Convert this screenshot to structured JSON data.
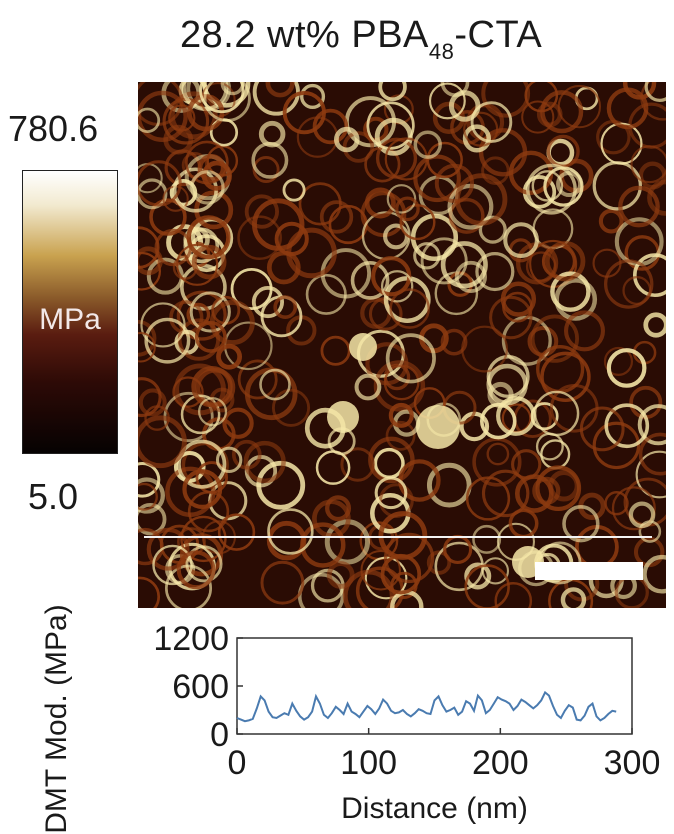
{
  "title": {
    "main": "28.2 wt% PBA",
    "sub": "48",
    "tail": "-CTA"
  },
  "colorbar": {
    "max": "780.6",
    "min": "5.0",
    "unit": "MPa",
    "colors": [
      "#ffffff",
      "#c9a24f",
      "#8a5a2a",
      "#5a1c10",
      "#060202"
    ]
  },
  "image_colors": {
    "dark": "#2a0c04",
    "mid": "#8c3a10",
    "bright": "#f6e7a8"
  },
  "chart_data": {
    "type": "line",
    "xlabel": "Distance (nm)",
    "ylabel": "DMT Mod. (MPa)",
    "xlim": [
      0,
      300
    ],
    "ylim": [
      0,
      1200
    ],
    "xticks": [
      0,
      100,
      200,
      300
    ],
    "yticks": [
      0,
      600,
      1200
    ],
    "line_color": "#4a7bb0",
    "x": [
      0,
      3,
      6,
      9,
      12,
      15,
      18,
      21,
      24,
      27,
      30,
      33,
      36,
      39,
      42,
      45,
      48,
      51,
      54,
      57,
      60,
      63,
      66,
      69,
      72,
      75,
      78,
      81,
      84,
      87,
      90,
      93,
      96,
      99,
      102,
      105,
      108,
      111,
      114,
      117,
      120,
      123,
      126,
      129,
      132,
      135,
      138,
      141,
      144,
      147,
      150,
      153,
      156,
      159,
      162,
      165,
      168,
      171,
      174,
      177,
      180,
      183,
      186,
      189,
      192,
      195,
      198,
      201,
      204,
      207,
      210,
      213,
      216,
      219,
      222,
      225,
      228,
      231,
      234,
      237,
      240,
      243,
      246,
      249,
      252,
      255,
      258,
      261,
      264,
      267,
      270,
      273,
      276,
      279,
      282,
      285,
      288
    ],
    "y": [
      200,
      180,
      160,
      170,
      190,
      320,
      470,
      420,
      280,
      210,
      200,
      230,
      260,
      240,
      380,
      290,
      220,
      180,
      210,
      280,
      470,
      380,
      240,
      200,
      260,
      340,
      300,
      250,
      380,
      280,
      250,
      210,
      280,
      350,
      310,
      250,
      320,
      430,
      380,
      290,
      260,
      270,
      300,
      250,
      220,
      260,
      310,
      290,
      260,
      250,
      420,
      470,
      360,
      280,
      300,
      330,
      240,
      280,
      410,
      380,
      290,
      480,
      420,
      260,
      300,
      380,
      460,
      430,
      410,
      380,
      300,
      350,
      430,
      400,
      360,
      320,
      360,
      420,
      520,
      480,
      350,
      240,
      200,
      290,
      360,
      330,
      180,
      170,
      230,
      340,
      380,
      220,
      170,
      200,
      250,
      290,
      280
    ]
  }
}
